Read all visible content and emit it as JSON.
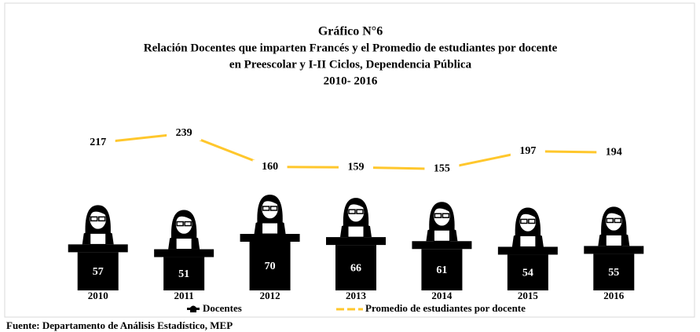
{
  "chart_data": {
    "type": "bar",
    "title": "Gráfico N°6",
    "subtitle": [
      "Relación Docentes que imparten Francés y el Promedio de estudiantes por docente",
      "en Preescolar y I-II Ciclos, Dependencia Pública",
      "2010- 2016"
    ],
    "categories": [
      "2010",
      "2011",
      "2012",
      "2013",
      "2014",
      "2015",
      "2016"
    ],
    "series": [
      {
        "name": "Docentes",
        "type": "bar",
        "color": "#000000",
        "values": [
          57,
          51,
          70,
          66,
          61,
          54,
          55
        ]
      },
      {
        "name": "Promedio de estudiantes por docente",
        "type": "line",
        "color": "#ffc72c",
        "values": [
          217,
          239,
          160,
          159,
          155,
          197,
          194
        ]
      }
    ],
    "source": "Fuente: Departamento de Análisis Estadístico, MEP"
  }
}
